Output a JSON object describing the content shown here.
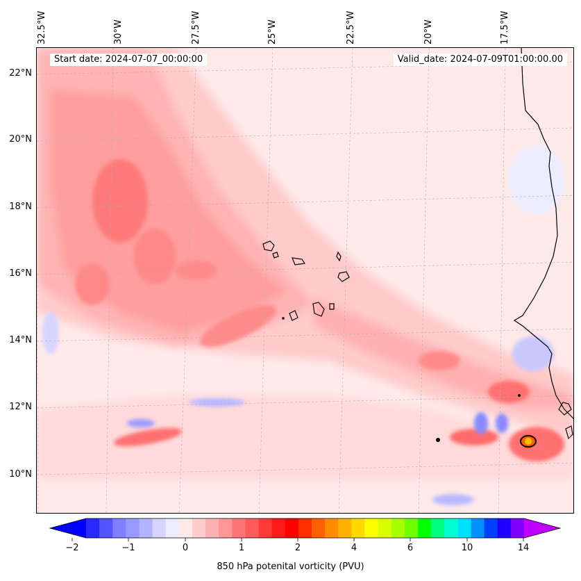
{
  "header": {
    "start_date": "Start date: 2024-07-07_00:00:00",
    "valid_date": "Valid_date: 2024-07-09T01:00:00.00"
  },
  "map": {
    "lon_labels": [
      "32.5°W",
      "30°W",
      "27.5°W",
      "25°W",
      "22.5°W",
      "20°W",
      "17.5°W"
    ],
    "lat_labels": [
      "22°N",
      "20°N",
      "18°N",
      "16°N",
      "14°N",
      "12°N",
      "10°N"
    ],
    "coastline_color": "#000000",
    "gridline_color": "#b0b0b0"
  },
  "colorbar": {
    "label": "850 hPa potenital vorticity (PVU)",
    "tick_labels": [
      "−2",
      "−1",
      "0",
      "1",
      "2",
      "4",
      "6",
      "10",
      "14"
    ],
    "colors": [
      "#0000ff",
      "#2a2aff",
      "#5555ff",
      "#7f7fff",
      "#9999ff",
      "#b3b3ff",
      "#d5d5ff",
      "#ececff",
      "#fee9e9",
      "#ffcccc",
      "#ffb0b0",
      "#ff9595",
      "#ff7575",
      "#ff5a5a",
      "#ff3a3a",
      "#ff1a1a",
      "#ff0000",
      "#ff3000",
      "#ff6000",
      "#ff8c00",
      "#ffb000",
      "#ffd800",
      "#ffff00",
      "#d8ff00",
      "#a8ff00",
      "#70ff00",
      "#00ff00",
      "#00ff80",
      "#00ffd0",
      "#00e0ff",
      "#0090ff",
      "#0040ff",
      "#2000ff",
      "#8000ff",
      "#c000ff"
    ]
  }
}
